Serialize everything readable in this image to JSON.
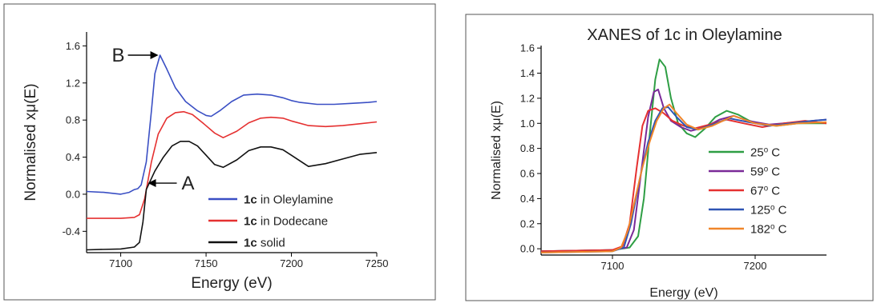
{
  "chart_data": [
    {
      "type": "line",
      "title": "",
      "xlabel": "Energy (eV)",
      "ylabel": "Normalised xμ(E)",
      "xlim": [
        7080,
        7250
      ],
      "ylim": [
        -0.63,
        1.75
      ],
      "x_ticks": [
        "7100",
        "7150",
        "7200",
        "7250"
      ],
      "y_ticks": [
        "-0.4",
        "0.0",
        "0.4",
        "0.8",
        "1.2",
        "1.6"
      ],
      "grid": false,
      "legend_position": "bottom-right",
      "legend": [
        {
          "bold": "1c",
          "rest": " in Oleylamine",
          "color": "#3a4fc4"
        },
        {
          "bold": "1c",
          "rest": " in Dodecane",
          "color": "#e53030"
        },
        {
          "bold": "1c",
          "rest": " solid",
          "color": "#111111"
        }
      ],
      "annotations": [
        {
          "label": "B",
          "x": 7123,
          "y": 1.5
        },
        {
          "label": "A",
          "x": 7115,
          "y": 0.12
        }
      ],
      "series": [
        {
          "key": "oleylamine",
          "color": "#3a4fc4",
          "x": [
            7080,
            7090,
            7100,
            7105,
            7108,
            7110,
            7112,
            7115,
            7118,
            7120,
            7123,
            7127,
            7132,
            7138,
            7145,
            7150,
            7153,
            7158,
            7165,
            7172,
            7180,
            7188,
            7195,
            7200,
            7205,
            7215,
            7225,
            7235,
            7245,
            7250
          ],
          "y": [
            0.03,
            0.02,
            0.0,
            0.02,
            0.05,
            0.06,
            0.1,
            0.35,
            0.9,
            1.3,
            1.5,
            1.35,
            1.15,
            1.0,
            0.9,
            0.85,
            0.84,
            0.9,
            1.0,
            1.07,
            1.08,
            1.07,
            1.04,
            1.01,
            0.99,
            0.97,
            0.97,
            0.98,
            0.99,
            1.0
          ]
        },
        {
          "key": "dodecane",
          "color": "#e53030",
          "x": [
            7080,
            7100,
            7108,
            7111,
            7114,
            7118,
            7122,
            7127,
            7132,
            7137,
            7142,
            7148,
            7155,
            7160,
            7168,
            7175,
            7182,
            7188,
            7195,
            7200,
            7210,
            7220,
            7230,
            7240,
            7250
          ],
          "y": [
            -0.26,
            -0.26,
            -0.25,
            -0.22,
            -0.05,
            0.35,
            0.65,
            0.82,
            0.88,
            0.89,
            0.86,
            0.77,
            0.66,
            0.61,
            0.68,
            0.77,
            0.82,
            0.83,
            0.82,
            0.79,
            0.74,
            0.73,
            0.74,
            0.76,
            0.78
          ]
        },
        {
          "key": "solid",
          "color": "#111111",
          "x": [
            7080,
            7100,
            7108,
            7111,
            7113,
            7115,
            7118,
            7120,
            7125,
            7130,
            7135,
            7140,
            7145,
            7150,
            7155,
            7160,
            7168,
            7175,
            7182,
            7188,
            7195,
            7200,
            7210,
            7220,
            7230,
            7240,
            7250
          ],
          "y": [
            -0.6,
            -0.59,
            -0.57,
            -0.52,
            -0.3,
            0.05,
            0.17,
            0.25,
            0.4,
            0.52,
            0.57,
            0.57,
            0.52,
            0.42,
            0.32,
            0.29,
            0.37,
            0.47,
            0.51,
            0.51,
            0.48,
            0.42,
            0.3,
            0.33,
            0.38,
            0.43,
            0.45
          ]
        }
      ]
    },
    {
      "type": "line",
      "title": "XANES of 1c in Oleylamine",
      "xlabel": "Energy (eV)",
      "ylabel": "Normalised xμ(E)",
      "xlim": [
        7050,
        7250
      ],
      "ylim": [
        -0.05,
        1.62
      ],
      "x_ticks": [
        "7100",
        "7200"
      ],
      "y_ticks": [
        "0.0",
        "0.2",
        "0.4",
        "0.6",
        "0.8",
        "1.0",
        "1.2",
        "1.4",
        "1.6"
      ],
      "grid": false,
      "legend_position": "bottom-right",
      "legend": [
        {
          "base": "25",
          "sup": "o",
          "rest": " C",
          "color": "#2e9e44"
        },
        {
          "base": "59",
          "sup": "o",
          "rest": " C",
          "color": "#7a2a98"
        },
        {
          "base": "67",
          "sup": "o",
          "rest": " C",
          "color": "#e53030"
        },
        {
          "base": "125",
          "sup": "o",
          "rest": " C",
          "color": "#2f55b4"
        },
        {
          "base": "182",
          "sup": "o",
          "rest": " C",
          "color": "#f0862a"
        }
      ],
      "series": [
        {
          "key": "25C",
          "color": "#2e9e44",
          "x": [
            7050,
            7100,
            7112,
            7118,
            7122,
            7126,
            7130,
            7133,
            7137,
            7141,
            7146,
            7152,
            7158,
            7165,
            7172,
            7180,
            7188,
            7196,
            7205,
            7215,
            7230,
            7250
          ],
          "y": [
            -0.02,
            -0.01,
            0.01,
            0.1,
            0.4,
            0.9,
            1.35,
            1.51,
            1.45,
            1.2,
            1.0,
            0.92,
            0.89,
            0.96,
            1.05,
            1.1,
            1.07,
            1.02,
            0.99,
            0.98,
            1.0,
            1.0
          ]
        },
        {
          "key": "59C",
          "color": "#7a2a98",
          "x": [
            7050,
            7100,
            7110,
            7115,
            7120,
            7125,
            7129,
            7132,
            7136,
            7141,
            7148,
            7155,
            7165,
            7175,
            7185,
            7195,
            7210,
            7230,
            7250
          ],
          "y": [
            -0.02,
            -0.01,
            0.01,
            0.15,
            0.6,
            1.05,
            1.25,
            1.27,
            1.12,
            1.02,
            0.97,
            0.94,
            0.97,
            1.03,
            1.06,
            1.02,
            0.99,
            1.01,
            1.03
          ]
        },
        {
          "key": "67C",
          "color": "#e53030",
          "x": [
            7050,
            7100,
            7107,
            7112,
            7117,
            7121,
            7125,
            7130,
            7136,
            7142,
            7150,
            7158,
            7168,
            7180,
            7192,
            7205,
            7220,
            7235,
            7250
          ],
          "y": [
            -0.02,
            -0.01,
            0.02,
            0.2,
            0.65,
            0.98,
            1.1,
            1.12,
            1.08,
            1.02,
            0.98,
            0.96,
            0.99,
            1.03,
            1.0,
            0.97,
            1.0,
            1.02,
            1.0
          ]
        },
        {
          "key": "125C",
          "color": "#2f55b4",
          "x": [
            7050,
            7100,
            7108,
            7113,
            7119,
            7125,
            7130,
            7135,
            7139,
            7145,
            7152,
            7160,
            7170,
            7182,
            7195,
            7210,
            7225,
            7240,
            7250
          ],
          "y": [
            -0.03,
            -0.02,
            0.01,
            0.2,
            0.55,
            0.85,
            1.02,
            1.12,
            1.13,
            1.05,
            0.97,
            0.95,
            0.99,
            1.04,
            1.01,
            0.98,
            1.0,
            1.02,
            1.03
          ]
        },
        {
          "key": "182C",
          "color": "#f0862a",
          "x": [
            7050,
            7100,
            7106,
            7111,
            7116,
            7121,
            7126,
            7131,
            7136,
            7140,
            7145,
            7152,
            7160,
            7170,
            7185,
            7200,
            7215,
            7230,
            7250
          ],
          "y": [
            -0.03,
            -0.02,
            0.01,
            0.15,
            0.4,
            0.65,
            0.85,
            1.02,
            1.12,
            1.15,
            1.08,
            0.99,
            0.95,
            0.98,
            1.06,
            1.0,
            0.98,
            1.0,
            1.01
          ]
        }
      ]
    }
  ]
}
